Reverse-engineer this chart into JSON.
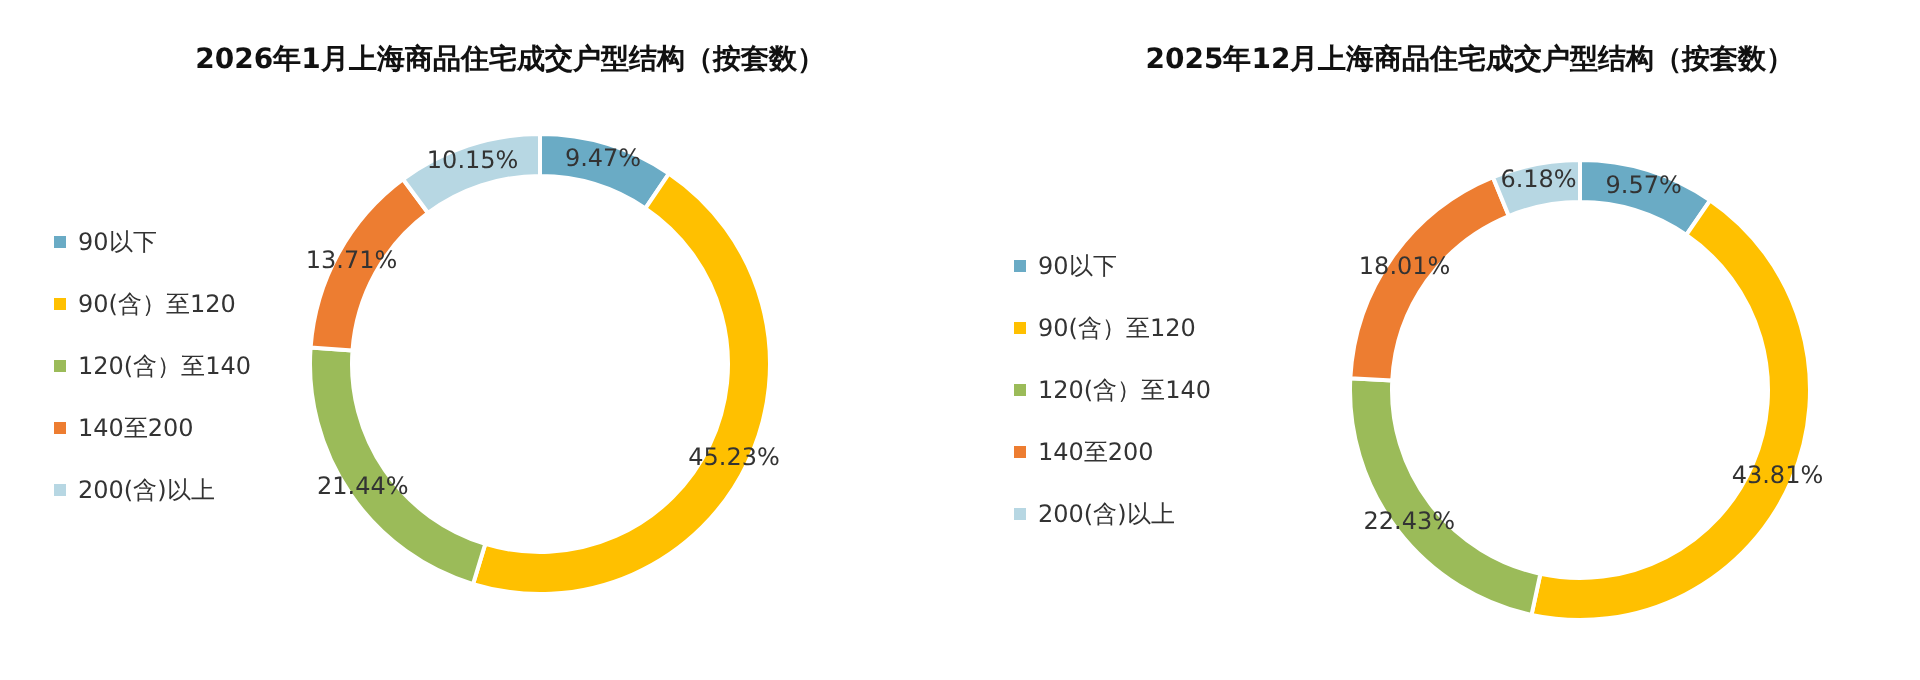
{
  "chart_data": [
    {
      "type": "donut",
      "title": "2026年1月上海商品住宅成交户型结构（按套数）",
      "categories": [
        "90以下",
        "90(含）至120",
        "120(含）至140",
        "140至200",
        "200(含)以上"
      ],
      "values": [
        9.47,
        45.23,
        21.44,
        13.71,
        10.15
      ],
      "value_labels": [
        "9.47%",
        "45.23%",
        "21.44%",
        "13.71%",
        "10.15%"
      ],
      "colors": [
        "#6aabc5",
        "#ffc000",
        "#9bbb59",
        "#ed7d31",
        "#b7d7e3"
      ],
      "legend": "left"
    },
    {
      "type": "donut",
      "title": "2025年12月上海商品住宅成交户型结构（按套数）",
      "categories": [
        "90以下",
        "90(含）至120",
        "120(含）至140",
        "140至200",
        "200(含)以上"
      ],
      "values": [
        9.57,
        43.81,
        22.43,
        18.01,
        6.18
      ],
      "value_labels": [
        "9.57%",
        "43.81%",
        "22.43%",
        "18.01%",
        "6.18%"
      ],
      "colors": [
        "#6aabc5",
        "#ffc000",
        "#9bbb59",
        "#ed7d31",
        "#b7d7e3"
      ],
      "legend": "left"
    }
  ]
}
